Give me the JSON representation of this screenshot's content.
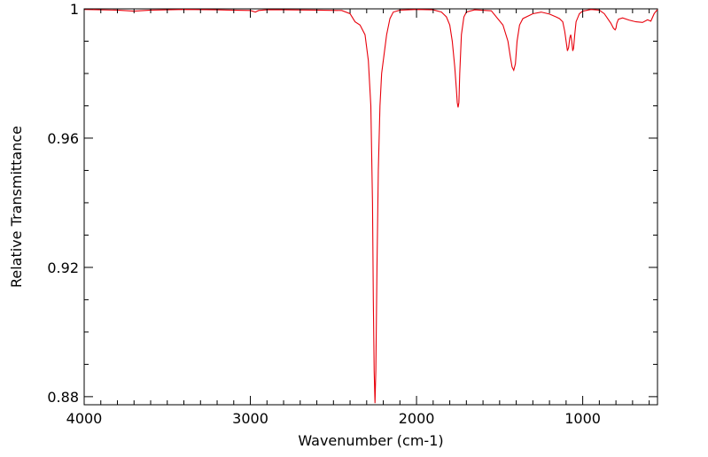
{
  "chart_data": {
    "type": "line",
    "title": "",
    "xlabel": "Wavenumber (cm-1)",
    "ylabel": "Relative Transmittance",
    "xlim": [
      4000,
      550
    ],
    "x_reversed": true,
    "ylim": [
      0.8775,
      1.0
    ],
    "x_ticks": [
      4000,
      3000,
      2000,
      1000
    ],
    "x_tick_labels": [
      "4000",
      "3000",
      "2000",
      "1000"
    ],
    "y_ticks": [
      0.88,
      0.92,
      0.96,
      1.0
    ],
    "y_tick_labels": [
      "0.88",
      "0.92",
      "0.96",
      "1"
    ],
    "grid": false,
    "legend": "none",
    "series": [
      {
        "color": "#e8000b",
        "x": [
          4000,
          3800,
          3700,
          3600,
          3400,
          3200,
          3000,
          2970,
          2950,
          2900,
          2800,
          2600,
          2450,
          2400,
          2370,
          2340,
          2310,
          2290,
          2275,
          2265,
          2260,
          2255,
          2250,
          2245,
          2238,
          2230,
          2220,
          2210,
          2195,
          2180,
          2160,
          2140,
          2100,
          2000,
          1900,
          1850,
          1820,
          1800,
          1785,
          1770,
          1760,
          1755,
          1750,
          1745,
          1740,
          1730,
          1715,
          1700,
          1650,
          1550,
          1480,
          1450,
          1435,
          1425,
          1415,
          1405,
          1395,
          1380,
          1360,
          1300,
          1250,
          1200,
          1160,
          1140,
          1120,
          1108,
          1100,
          1092,
          1085,
          1078,
          1072,
          1066,
          1060,
          1055,
          1048,
          1040,
          1020,
          1000,
          950,
          900,
          870,
          850,
          830,
          815,
          805,
          800,
          795,
          785,
          760,
          720,
          680,
          640,
          610,
          590,
          570,
          555,
          550
        ],
        "y": [
          0.9998,
          0.9996,
          0.9993,
          0.9996,
          0.9998,
          0.9997,
          0.9995,
          0.999,
          0.9995,
          0.9997,
          0.9997,
          0.9996,
          0.9995,
          0.9985,
          0.996,
          0.995,
          0.992,
          0.984,
          0.97,
          0.94,
          0.91,
          0.888,
          0.878,
          0.888,
          0.92,
          0.95,
          0.97,
          0.98,
          0.986,
          0.992,
          0.997,
          0.999,
          0.9996,
          0.9998,
          0.9997,
          0.999,
          0.9975,
          0.995,
          0.99,
          0.982,
          0.975,
          0.971,
          0.9695,
          0.971,
          0.98,
          0.992,
          0.9975,
          0.999,
          0.9997,
          0.9994,
          0.995,
          0.99,
          0.985,
          0.982,
          0.981,
          0.983,
          0.99,
          0.995,
          0.997,
          0.9985,
          0.999,
          0.9984,
          0.9975,
          0.997,
          0.996,
          0.993,
          0.99,
          0.987,
          0.988,
          0.991,
          0.992,
          0.99,
          0.987,
          0.9878,
          0.992,
          0.996,
          0.9985,
          0.9993,
          0.9998,
          0.9996,
          0.9985,
          0.997,
          0.9955,
          0.994,
          0.9935,
          0.994,
          0.9955,
          0.9968,
          0.9972,
          0.9965,
          0.996,
          0.9958,
          0.9966,
          0.9962,
          0.9985,
          0.9995,
          0.9997
        ]
      }
    ]
  }
}
